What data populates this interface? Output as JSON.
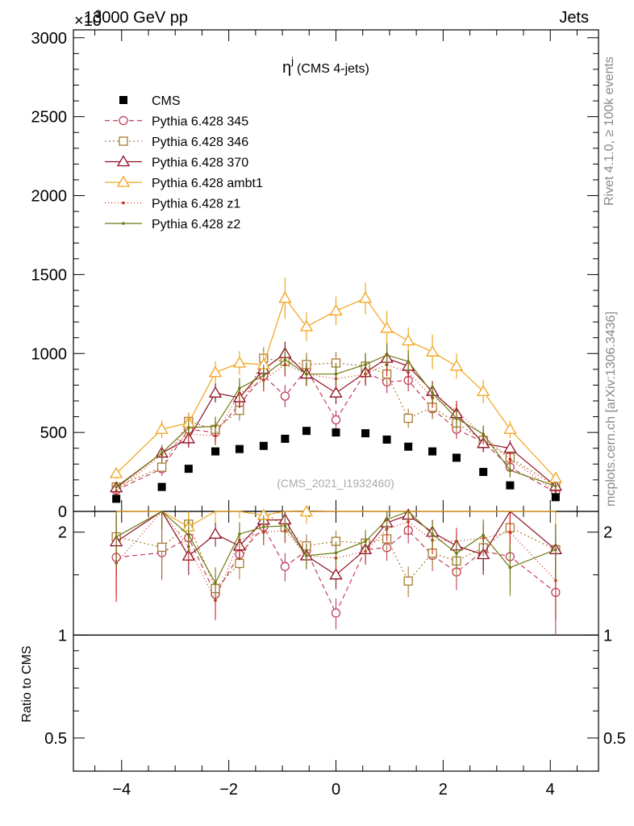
{
  "header": {
    "left_label": "13000 GeV pp",
    "right_label": "Jets",
    "exponent_label": "×10",
    "exponent_value": "3"
  },
  "side_labels": {
    "rivet": "Rivet 4.1.0, ≥ 100k events",
    "mcplots": "mcplots.cern.ch [arXiv:1306.3436]"
  },
  "watermark": "(CMS_2021_I1932460)",
  "chart_data": [
    {
      "type": "line",
      "title": "η^j (CMS 4-jets)",
      "title_main": "η",
      "title_sup": "j",
      "title_rest": "(CMS 4-jets)",
      "xlabel": "",
      "ylabel": "",
      "xlim": [
        -4.9,
        4.9
      ],
      "ylim": [
        0,
        3050
      ],
      "yticks": [
        0,
        500,
        1000,
        1500,
        2000,
        2500,
        3000
      ],
      "ytick_labels": [
        "0",
        "500",
        "1000",
        "1500",
        "2000",
        "2500",
        "3000"
      ],
      "x": [
        -4.1,
        -3.25,
        -2.75,
        -2.25,
        -1.8,
        -1.35,
        -0.95,
        -0.55,
        0.0,
        0.55,
        0.95,
        1.35,
        1.8,
        2.25,
        2.75,
        3.25,
        4.1
      ],
      "data": {
        "name": "CMS",
        "values": [
          80,
          155,
          270,
          380,
          395,
          415,
          460,
          510,
          500,
          495,
          455,
          410,
          380,
          340,
          250,
          165,
          90
        ]
      },
      "series": [
        {
          "name": "Pythia 6.428 345",
          "color": "#c13d5a",
          "marker": "circle-open",
          "dash": "6,4",
          "values": [
            135,
            270,
            520,
            500,
            680,
            860,
            730,
            900,
            580,
            880,
            820,
            830,
            650,
            520,
            440,
            280,
            120
          ],
          "errors": [
            30,
            45,
            55,
            60,
            65,
            70,
            70,
            75,
            60,
            75,
            70,
            70,
            65,
            60,
            55,
            45,
            30
          ]
        },
        {
          "name": "Pythia 6.428 346",
          "color": "#a77b34",
          "marker": "square-open",
          "dash": "2,3",
          "values": [
            155,
            280,
            570,
            520,
            640,
            970,
            950,
            930,
            940,
            920,
            870,
            590,
            660,
            560,
            450,
            340,
            160
          ],
          "errors": [
            30,
            45,
            55,
            60,
            65,
            70,
            70,
            75,
            70,
            75,
            70,
            60,
            65,
            60,
            55,
            50,
            30
          ]
        },
        {
          "name": "Pythia 6.428 370",
          "color": "#8d0f22",
          "marker": "triangle-open",
          "dash": "",
          "values": [
            150,
            370,
            460,
            750,
            720,
            900,
            1000,
            870,
            750,
            880,
            970,
            920,
            760,
            620,
            430,
            400,
            160
          ],
          "errors": [
            30,
            50,
            55,
            60,
            65,
            70,
            75,
            75,
            70,
            75,
            75,
            70,
            65,
            60,
            55,
            50,
            30
          ]
        },
        {
          "name": "Pythia 6.428 ambt1",
          "color": "#f2a31b",
          "marker": "triangle-open",
          "dash": "",
          "values": [
            240,
            520,
            560,
            880,
            940,
            930,
            1350,
            1170,
            1270,
            1350,
            1160,
            1080,
            1010,
            920,
            760,
            520,
            210
          ],
          "errors": [
            35,
            55,
            60,
            70,
            75,
            80,
            130,
            90,
            90,
            100,
            110,
            85,
            110,
            80,
            75,
            55,
            35
          ]
        },
        {
          "name": "Pythia 6.428 z1",
          "color": "#d0261b",
          "marker": "dot",
          "dash": "1,3",
          "values": [
            130,
            360,
            490,
            480,
            750,
            830,
            930,
            870,
            840,
            870,
            930,
            880,
            720,
            640,
            480,
            330,
            130
          ],
          "errors": [
            30,
            45,
            55,
            60,
            65,
            70,
            75,
            75,
            70,
            75,
            75,
            70,
            65,
            60,
            55,
            45,
            30
          ]
        },
        {
          "name": "Pythia 6.428 z2",
          "color": "#6e7a10",
          "marker": "dot",
          "dash": "",
          "values": [
            155,
            370,
            530,
            540,
            780,
            860,
            960,
            870,
            870,
            930,
            990,
            950,
            750,
            590,
            490,
            260,
            160
          ],
          "errors": [
            30,
            50,
            55,
            60,
            65,
            70,
            75,
            75,
            70,
            75,
            75,
            70,
            65,
            60,
            55,
            45,
            30
          ]
        }
      ],
      "legend": [
        "CMS",
        "Pythia 6.428 345",
        "Pythia 6.428 346",
        "Pythia 6.428 370",
        "Pythia 6.428 ambt1",
        "Pythia 6.428 z1",
        "Pythia 6.428 z2"
      ]
    },
    {
      "type": "line",
      "title": "",
      "xlabel": "",
      "ylabel": "Ratio to CMS",
      "xlim": [
        -4.9,
        4.9
      ],
      "ylim": [
        0.4,
        2.3
      ],
      "yscale": "log",
      "yticks": [
        0.5,
        1,
        2
      ],
      "ytick_labels": [
        "0.5",
        "1",
        "2"
      ],
      "xticks": [
        -4,
        -2,
        0,
        2,
        4
      ],
      "xtick_labels": [
        "−4",
        "−2",
        "0",
        "2",
        "4"
      ],
      "reference_line": 1
    }
  ]
}
